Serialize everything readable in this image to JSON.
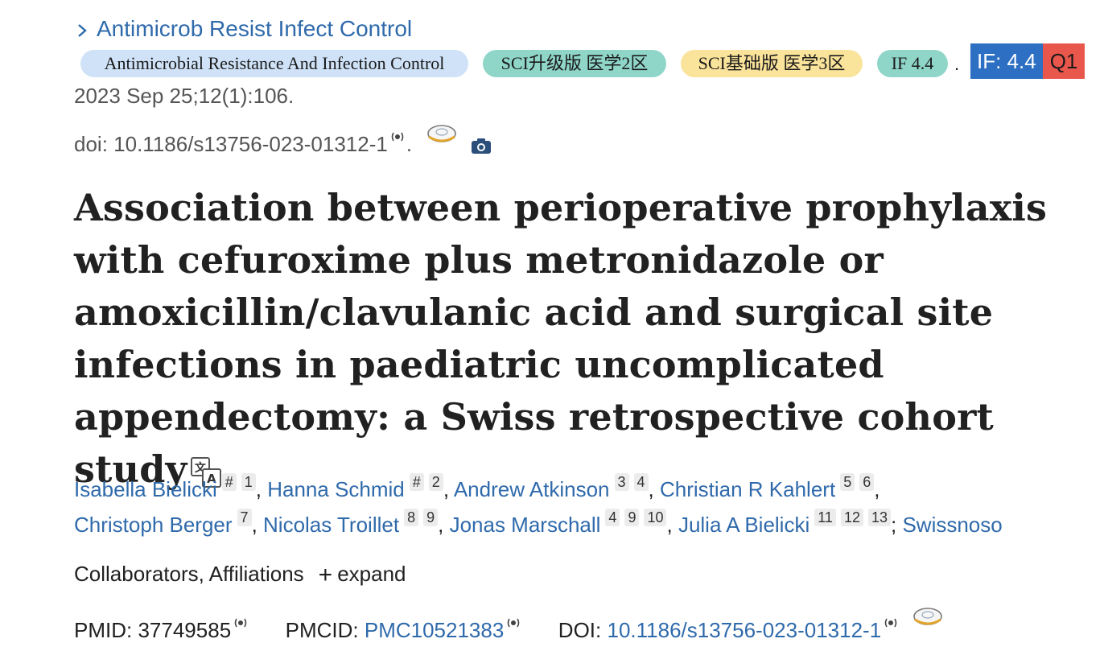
{
  "journal": {
    "link_text": "Antimicrob Resist Infect Control"
  },
  "badges": {
    "journal_full": "Antimicrobial Resistance And Infection Control",
    "sci_upgrade": "SCI升级版 医学2区",
    "sci_base": "SCI基础版 医学3区",
    "if_small": "IF 4.4",
    "dot": ".",
    "if_box": "IF: 4.4",
    "quartile": "Q1"
  },
  "citation": {
    "date_line": "2023 Sep 25;12(1):106.",
    "doi_label": "doi: 10.1186/s13756-023-01312-1",
    "doi_suffix": "."
  },
  "title": "Association between perioperative prophylaxis with cefuroxime plus metronidazole or amoxicillin/clavulanic acid and surgical site infections in paediatric uncomplicated appendectomy: a Swiss retrospective cohort study",
  "authors": [
    {
      "name": "Isabella Bielicki",
      "sups": [
        "#",
        "1"
      ],
      "sep": ", "
    },
    {
      "name": "Hanna Schmid",
      "sups": [
        "#",
        "2"
      ],
      "sep": ", "
    },
    {
      "name": "Andrew Atkinson",
      "sups": [
        "3",
        "4"
      ],
      "sep": ", "
    },
    {
      "name": "Christian R Kahlert",
      "sups": [
        "5",
        "6"
      ],
      "sep": ","
    },
    {
      "name": "Christoph Berger",
      "sups": [
        "7"
      ],
      "sep": ", "
    },
    {
      "name": "Nicolas Troillet",
      "sups": [
        "8",
        "9"
      ],
      "sep": ", "
    },
    {
      "name": "Jonas Marschall",
      "sups": [
        "4",
        "9",
        "10"
      ],
      "sep": ", "
    },
    {
      "name": "Julia A Bielicki",
      "sups": [
        "11",
        "12",
        "13"
      ],
      "sep": "; "
    },
    {
      "name": "Swissnoso",
      "sups": [],
      "sep": ""
    }
  ],
  "collaborators": {
    "label": "Collaborators, Affiliations",
    "plus": "+",
    "expand": "expand"
  },
  "ids": {
    "pmid_label": "PMID:",
    "pmid": "37749585",
    "pmcid_label": "PMCID:",
    "pmcid": "PMC10521383",
    "doi_label": "DOI:",
    "doi": "10.1186/s13756-023-01312-1"
  },
  "colors": {
    "link": "#2f6aab",
    "if_blue": "#2d6fc2",
    "q1_red": "#e9574c",
    "badge_blue": "#cfe2f7",
    "badge_teal": "#8fd6c9",
    "badge_yellow": "#fae39a"
  }
}
